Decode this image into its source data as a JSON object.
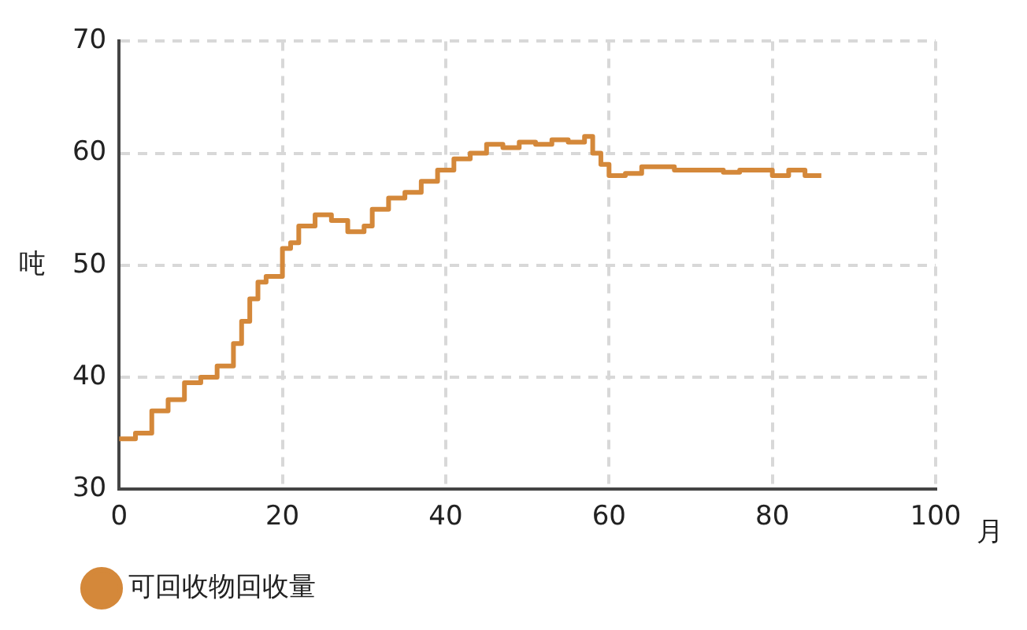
{
  "chart_data": {
    "type": "step",
    "xlabel": "月",
    "ylabel": "吨",
    "xlim": [
      0,
      100
    ],
    "xticks": [
      0,
      20,
      40,
      60,
      80,
      100
    ],
    "ylim": [
      30,
      70
    ],
    "yticks": [
      30,
      40,
      50,
      60,
      70
    ],
    "grid": true,
    "legend": "bottom left",
    "marker": "none",
    "line_style": "solid",
    "series": [
      {
        "name": "可回收物回收量",
        "color": "#d4883a",
        "x": [
          0,
          2,
          4,
          6,
          8,
          10,
          12,
          14,
          15,
          16,
          17,
          18,
          20,
          21,
          22,
          24,
          26,
          28,
          30,
          31,
          33,
          35,
          37,
          39,
          41,
          43,
          45,
          47,
          49,
          51,
          53,
          55,
          57,
          58,
          59,
          60,
          62,
          64,
          66,
          68,
          70,
          72,
          74,
          76,
          78,
          80,
          82,
          84,
          86
        ],
        "values": [
          34.5,
          35,
          37,
          38,
          39.5,
          40,
          41,
          43,
          45,
          47,
          48.5,
          49,
          51.5,
          52,
          53.5,
          54.5,
          54,
          53,
          53.5,
          55,
          56,
          56.5,
          57.5,
          58.5,
          59.5,
          60,
          60.8,
          60.5,
          61,
          60.8,
          61.2,
          61,
          61.5,
          60,
          59,
          58,
          58.2,
          58.8,
          58.8,
          58.5,
          58.5,
          58.5,
          58.3,
          58.5,
          58.5,
          58,
          58.5,
          58,
          58
        ]
      }
    ]
  }
}
